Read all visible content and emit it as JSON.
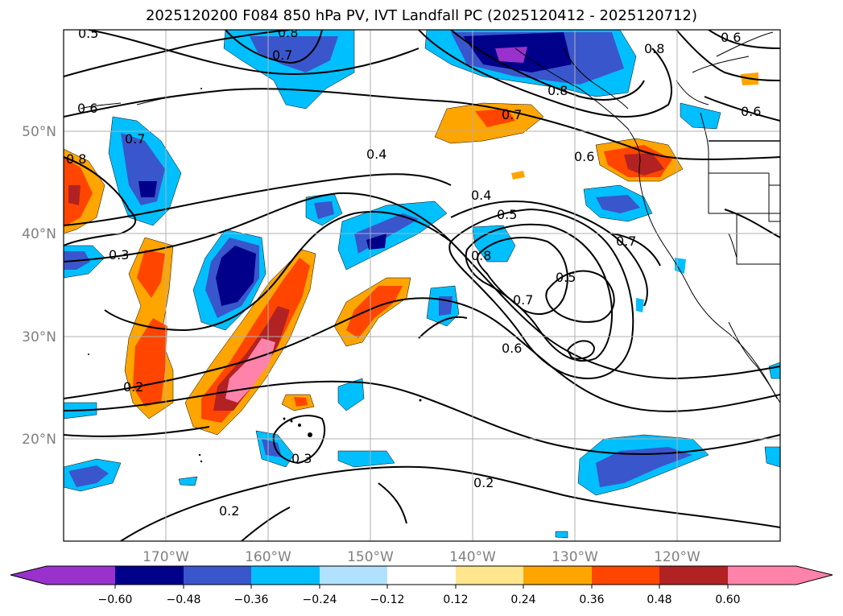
{
  "title": "2025120200 F084 850 hPa PV, IVT Landfall PC (2025120412 - 2025120712)",
  "map": {
    "projection": "PlateCarree",
    "lon_range": [
      -180,
      -110
    ],
    "lat_range": [
      10,
      60
    ],
    "gridlines": true,
    "coastlines": true,
    "state_borders": true
  },
  "lat_ticks": [
    "50°N",
    "40°N",
    "30°N",
    "20°N"
  ],
  "lon_ticks": [
    "170°W",
    "160°W",
    "150°W",
    "140°W",
    "130°W",
    "120°W"
  ],
  "colorbar": {
    "extend": "both",
    "tick_labels": [
      "−0.60",
      "−0.48",
      "−0.36",
      "−0.24",
      "−0.12",
      "0.12",
      "0.24",
      "0.36",
      "0.48",
      "0.60"
    ],
    "colors": [
      "#9932cc",
      "#00008b",
      "#3a56cc",
      "#00bfff",
      "#b0e2ff",
      "#ffffff",
      "#ffe68c",
      "#ffa500",
      "#ff4500",
      "#b22222",
      "#ff82ab"
    ]
  },
  "contour_labels": [
    "0.5",
    "0.8",
    "0.7",
    "0.6",
    "0.8",
    "0.6",
    "0.8",
    "0.7",
    "0.7",
    "0.8",
    "0.6",
    "0.4",
    "0.6",
    "0.4",
    "0.5",
    "0.8",
    "0.7",
    "0.5",
    "0.7",
    "0.6",
    "0.3",
    "0.2",
    "0.3",
    "0.2",
    "0.2"
  ],
  "colors": {
    "contour": "#000000",
    "grid": "#b0b0b0",
    "tick_text": "#808080"
  }
}
